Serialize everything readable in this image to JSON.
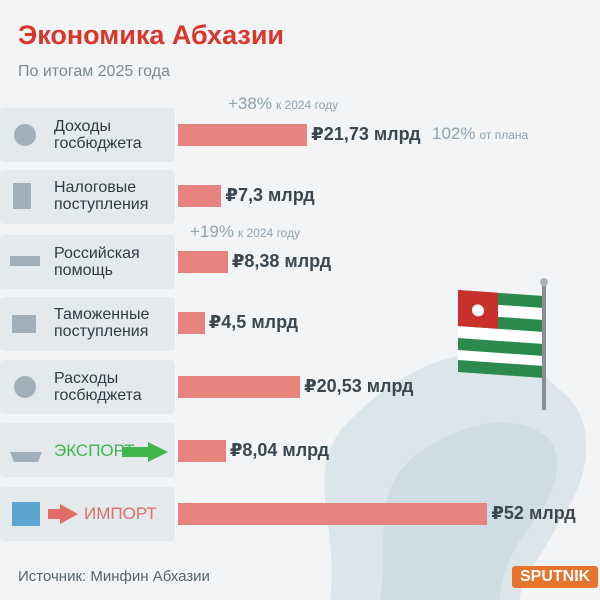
{
  "chart_data": {
    "type": "bar",
    "orientation": "horizontal",
    "title": "Экономика Абхазии",
    "subtitle": "По итогам 2025 года",
    "categories": [
      "Доходы госбюджета",
      "Налоговые поступления",
      "Российская помощь",
      "Таможенные поступления",
      "Расходы госбюджета",
      "ЭКСПОРТ",
      "ИМПОРТ"
    ],
    "values": [
      21.73,
      7.3,
      8.38,
      4.5,
      20.53,
      8.04,
      52
    ],
    "value_labels": [
      "₽21,73 млрд",
      "₽7,3 млрд",
      "₽8,38 млрд",
      "₽4,5 млрд",
      "₽20,53 млрд",
      "₽8,04 млрд",
      "₽52 млрд"
    ],
    "color": "#e8827e",
    "annotations": [
      {
        "value": "+38%",
        "text": "к 2024 году"
      },
      {
        "value": "102%",
        "text": "от плана"
      },
      {
        "value": "+19%",
        "text": "к 2024 году"
      }
    ],
    "source": "Источник: Минфин Абхазии",
    "brand": "SPUTNIK"
  }
}
